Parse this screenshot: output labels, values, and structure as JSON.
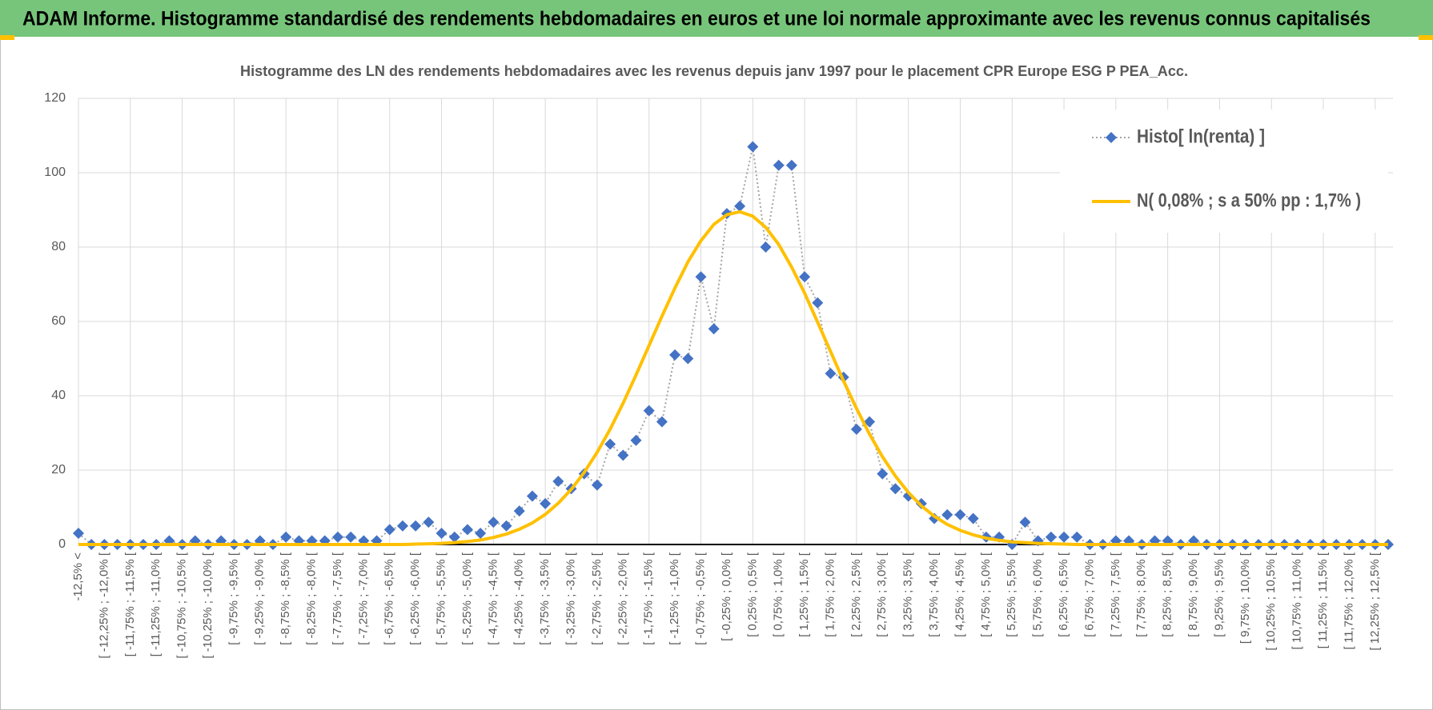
{
  "header": {
    "title": "ADAM Informe. Histogramme standardisé des rendements hebdomadaires en euros et une loi normale approximante avec les revenus connus capitalisés"
  },
  "chart_data": {
    "type": "line",
    "title": "Histogramme des LN des rendements hebdomadaires avec les revenus depuis janv 1997 pour le placement CPR Europe ESG P PEA_Acc.",
    "categories": [
      "-12,5% <",
      null,
      "[ -12,25% ; -12,0% [",
      null,
      "[ -11,75% ; -11,5% [",
      null,
      "[ -11,25% ; -11,0% [",
      null,
      "[ -10,75% ; -10,5% [",
      null,
      "[ -10,25% ; -10,0% [",
      null,
      "[ -9,75% ; -9,5% [",
      null,
      "[ -9,25% ; -9,0% [",
      null,
      "[ -8,75% ; -8,5% [",
      null,
      "[ -8,25% ; -8,0% [",
      null,
      "[ -7,75% ; -7,5% [",
      null,
      "[ -7,25% ; -7,0% [",
      null,
      "[ -6,75% ; -6,5% [",
      null,
      "[ -6,25% ; -6,0% [",
      null,
      "[ -5,75% ; -5,5% [",
      null,
      "[ -5,25% ; -5,0% [",
      null,
      "[ -4,75% ; -4,5% [",
      null,
      "[ -4,25% ; -4,0% [",
      null,
      "[ -3,75% ; -3,5% [",
      null,
      "[ -3,25% ; -3,0% [",
      null,
      "[ -2,75% ; -2,5% [",
      null,
      "[ -2,25% ; -2,0% [",
      null,
      "[ -1,75% ; -1,5% [",
      null,
      "[ -1,25% ; -1,0% [",
      null,
      "[ -0,75% ; -0,5% [",
      null,
      "[ -0,25% ; 0,0% [",
      null,
      "[ 0,25% ; 0,5% [",
      null,
      "[ 0,75% ; 1,0% [",
      null,
      "[ 1,25% ; 1,5% [",
      null,
      "[ 1,75% ; 2,0% [",
      null,
      "[ 2,25% ; 2,5% [",
      null,
      "[ 2,75% ; 3,0% [",
      null,
      "[ 3,25% ; 3,5% [",
      null,
      "[ 3,75% ; 4,0% [",
      null,
      "[ 4,25% ; 4,5% [",
      null,
      "[ 4,75% ; 5,0% [",
      null,
      "[ 5,25% ; 5,5% [",
      null,
      "[ 5,75% ; 6,0% [",
      null,
      "[ 6,25% ; 6,5% [",
      null,
      "[ 6,75% ; 7,0% [",
      null,
      "[ 7,25% ; 7,5% [",
      null,
      "[ 7,75% ; 8,0% [",
      null,
      "[ 8,25% ; 8,5% [",
      null,
      "[ 8,75% ; 9,0% [",
      null,
      "[ 9,25% ; 9,5% [",
      null,
      "[ 9,75% ; 10,0% [",
      null,
      "[ 10,25% ; 10,5% [",
      null,
      "[ 10,75% ; 11,0% [",
      null,
      "[ 11,25% ; 11,5% [",
      null,
      "[ 11,75% ; 12,0% [",
      null,
      "[ 12,25% ; 12,5% [",
      null
    ],
    "series": [
      {
        "name": "Histo[ ln(renta) ]",
        "color": "#4472c4",
        "line_color": "#a5a5a5",
        "marker": "diamond",
        "values": [
          3,
          0,
          0,
          0,
          0,
          0,
          0,
          1,
          0,
          1,
          0,
          1,
          0,
          0,
          1,
          0,
          2,
          1,
          1,
          1,
          2,
          2,
          1,
          1,
          4,
          5,
          5,
          6,
          3,
          2,
          4,
          3,
          6,
          5,
          9,
          13,
          11,
          17,
          15,
          19,
          16,
          27,
          24,
          28,
          36,
          33,
          51,
          50,
          72,
          58,
          89,
          91,
          107,
          80,
          102,
          102,
          72,
          65,
          46,
          45,
          31,
          33,
          19,
          15,
          13,
          11,
          7,
          8,
          8,
          7,
          2,
          2,
          0,
          6,
          1,
          2,
          2,
          2,
          0,
          0,
          1,
          1,
          0,
          1,
          1,
          0,
          1,
          0,
          0,
          0,
          0,
          0,
          0,
          0,
          0,
          0,
          0,
          0,
          0,
          0,
          0,
          0
        ]
      },
      {
        "name": "N( 0,08% ; s a 50% pp : 1,7% )",
        "color": "#ffc000",
        "values": [
          0,
          0,
          0,
          0,
          0,
          0,
          0,
          0,
          0,
          0,
          0,
          0,
          0,
          0,
          0,
          0,
          0,
          0,
          0,
          0,
          0,
          0,
          0,
          0,
          0,
          0,
          0.1,
          0.2,
          0.3,
          0.5,
          0.8,
          1.2,
          1.9,
          2.8,
          4.1,
          5.8,
          8.1,
          11.1,
          14.8,
          19.4,
          24.8,
          31.0,
          38.0,
          45.6,
          53.5,
          61.4,
          69.0,
          76.0,
          81.7,
          86.1,
          88.7,
          89.5,
          88.3,
          85.3,
          80.7,
          74.6,
          67.6,
          59.8,
          51.9,
          44.0,
          36.6,
          29.7,
          23.6,
          18.4,
          14.0,
          10.4,
          7.6,
          5.4,
          3.8,
          2.6,
          1.7,
          1.1,
          0.7,
          0.5,
          0.3,
          0.2,
          0.1,
          0,
          0,
          0,
          0,
          0,
          0,
          0,
          0,
          0,
          0,
          0,
          0,
          0,
          0,
          0,
          0,
          0,
          0,
          0,
          0,
          0,
          0,
          0,
          0,
          0
        ]
      }
    ],
    "ylim": [
      0,
      120
    ],
    "yticks": [
      0,
      20,
      40,
      60,
      80,
      100,
      120
    ],
    "grid": true,
    "legend": "top-right"
  }
}
